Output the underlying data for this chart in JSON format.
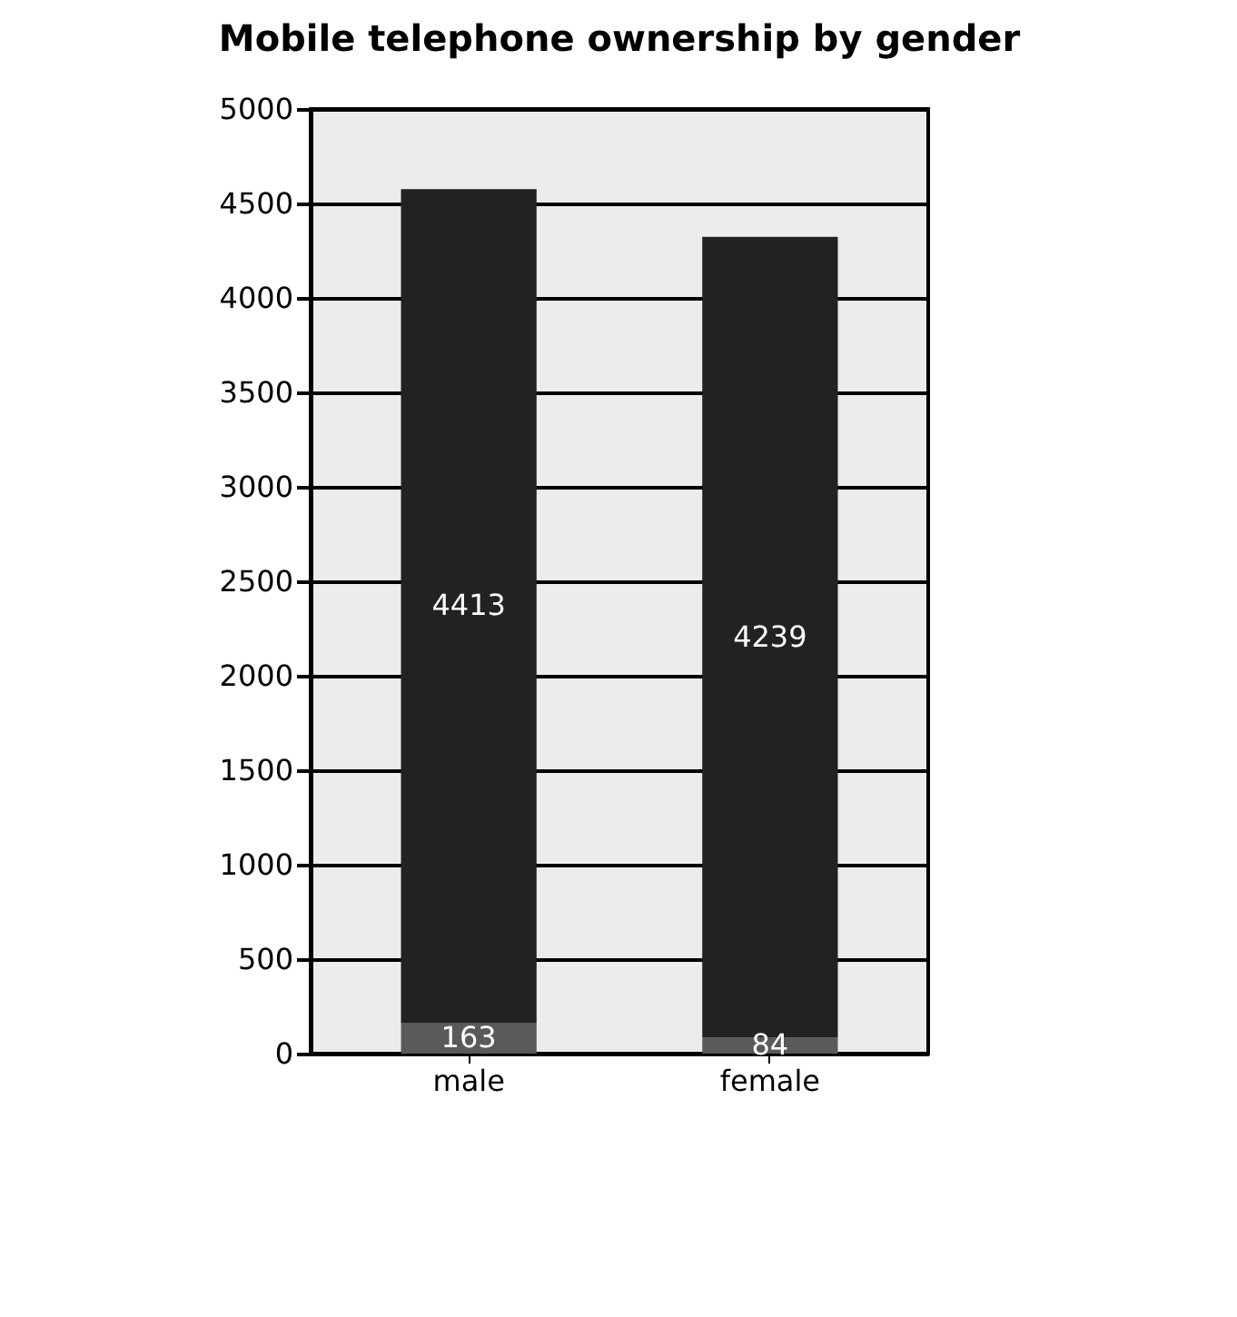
{
  "chart_data": {
    "type": "bar",
    "title": "Mobile telephone ownership by gender",
    "categories": [
      "male",
      "female"
    ],
    "series": [
      {
        "color": "#5a5a5a",
        "values": [
          163,
          84
        ]
      },
      {
        "color": "#222222",
        "values": [
          4413,
          4239
        ]
      }
    ],
    "stacked": true,
    "data_labels": true,
    "grid": "y",
    "legend": false,
    "ylim": [
      0,
      5000
    ],
    "yticks": [
      0,
      500,
      1000,
      1500,
      2000,
      2500,
      3000,
      3500,
      4000,
      4500,
      5000
    ]
  }
}
